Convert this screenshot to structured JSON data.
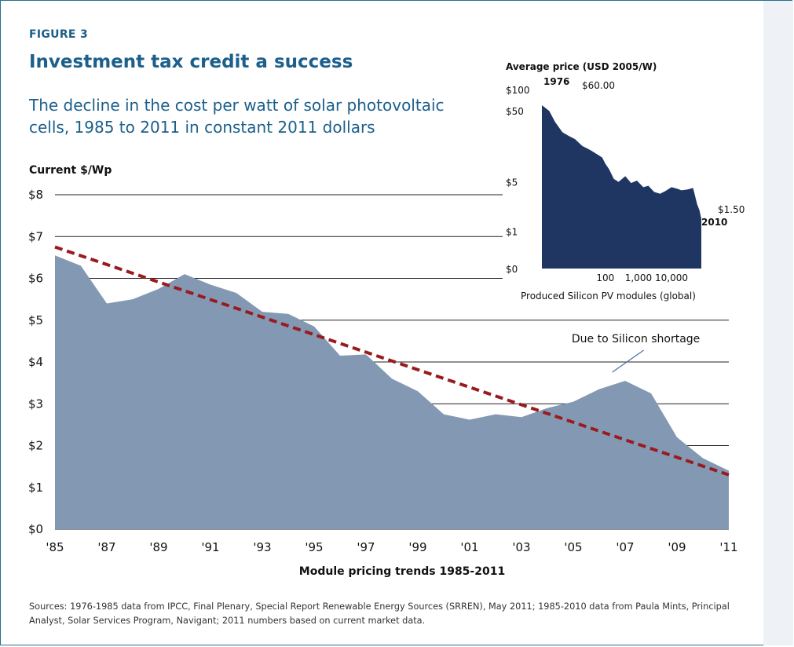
{
  "figure_label": "FIGURE 3",
  "title": "Investment tax credit a success",
  "subtitle": "The decline in the cost per watt of solar photovoltaic cells, 1985 to 2011 in constant 2011 dollars",
  "sources": "Sources: 1976-1985 data from IPCC, Final Plenary, Special Report Renewable Energy Sources (SRREN), May 2011; 1985-2010 data from Paula Mints, Principal Analyst, Solar Services Program, Navigant; 2011 numbers based on current market data.",
  "colors": {
    "area": "#8399b3",
    "trend": "#9a1b1f",
    "inset_area": "#1e3661",
    "title": "#1b5f8a",
    "grid": "#222222"
  },
  "chart_data": [
    {
      "type": "area",
      "ylabel": "Current $/Wp",
      "xlabel": "Module pricing trends 1985-2011",
      "x": [
        1985,
        1986,
        1987,
        1988,
        1989,
        1990,
        1991,
        1992,
        1993,
        1994,
        1995,
        1996,
        1997,
        1998,
        1999,
        2000,
        2001,
        2002,
        2003,
        2004,
        2005,
        2006,
        2007,
        2008,
        2009,
        2010,
        2011
      ],
      "series": [
        {
          "values": [
            6.55,
            6.3,
            5.4,
            5.5,
            5.75,
            6.1,
            5.85,
            5.65,
            5.2,
            5.15,
            4.85,
            4.15,
            4.18,
            3.6,
            3.3,
            2.75,
            2.62,
            2.75,
            2.68,
            2.9,
            3.05,
            3.35,
            3.55,
            3.25,
            2.2,
            1.7,
            1.4
          ]
        }
      ],
      "trendline": {
        "style": "dashed",
        "from": [
          1985,
          6.75
        ],
        "to": [
          2011,
          1.3
        ]
      },
      "ylim": [
        0,
        8
      ],
      "yticks": [
        0,
        1,
        2,
        3,
        4,
        5,
        6,
        7,
        8
      ],
      "ytick_labels": [
        "$0",
        "$1",
        "$2",
        "$3",
        "$4",
        "$5",
        "$6",
        "$7",
        "$8"
      ],
      "xticks": [
        1985,
        1987,
        1989,
        1991,
        1993,
        1995,
        1997,
        1999,
        2001,
        2003,
        2005,
        2007,
        2009,
        2011
      ],
      "xtick_labels": [
        "'85",
        "'87",
        "'89",
        "'91",
        "'93",
        "'95",
        "'97",
        "'99",
        "'01",
        "'03",
        "'05",
        "'07",
        "'09",
        "'11"
      ],
      "annotation": {
        "text": "Due to Silicon shortage",
        "x": 2006.2,
        "y": 3.7
      },
      "grid": true
    },
    {
      "type": "area",
      "title": "Average price (USD 2005/W)",
      "xlabel": "Produced Silicon PV modules (global)",
      "xscale": "log",
      "yscale": "log",
      "x": [
        1.2,
        2,
        3,
        5,
        8,
        12,
        20,
        35,
        60,
        80,
        100,
        130,
        180,
        250,
        400,
        600,
        900,
        1400,
        2000,
        3000,
        4500,
        6500,
        10000,
        15000,
        20000,
        30000,
        45000,
        60000,
        70000,
        80000
      ],
      "series": [
        {
          "values": [
            60,
            50,
            35,
            25,
            22,
            20,
            16,
            14,
            12,
            11,
            9,
            7.5,
            5.5,
            5,
            6,
            4.8,
            5.2,
            4.2,
            4.4,
            3.6,
            3.4,
            3.7,
            4.2,
            4.0,
            3.8,
            3.9,
            4.1,
            2.4,
            2.0,
            1.5
          ]
        }
      ],
      "ylim": [
        0.3,
        100
      ],
      "yticks": [
        0.3,
        1,
        5,
        50,
        100
      ],
      "ytick_labels": [
        "$0",
        "$1",
        "$5",
        "$50",
        "$100"
      ],
      "xticks": [
        100,
        1000,
        10000
      ],
      "xtick_labels": [
        "100",
        "1,000",
        "10,000"
      ],
      "labels": {
        "start_year": "1976",
        "start_price": "$60.00",
        "end_year": "2010",
        "end_price": "$1.50"
      }
    }
  ]
}
